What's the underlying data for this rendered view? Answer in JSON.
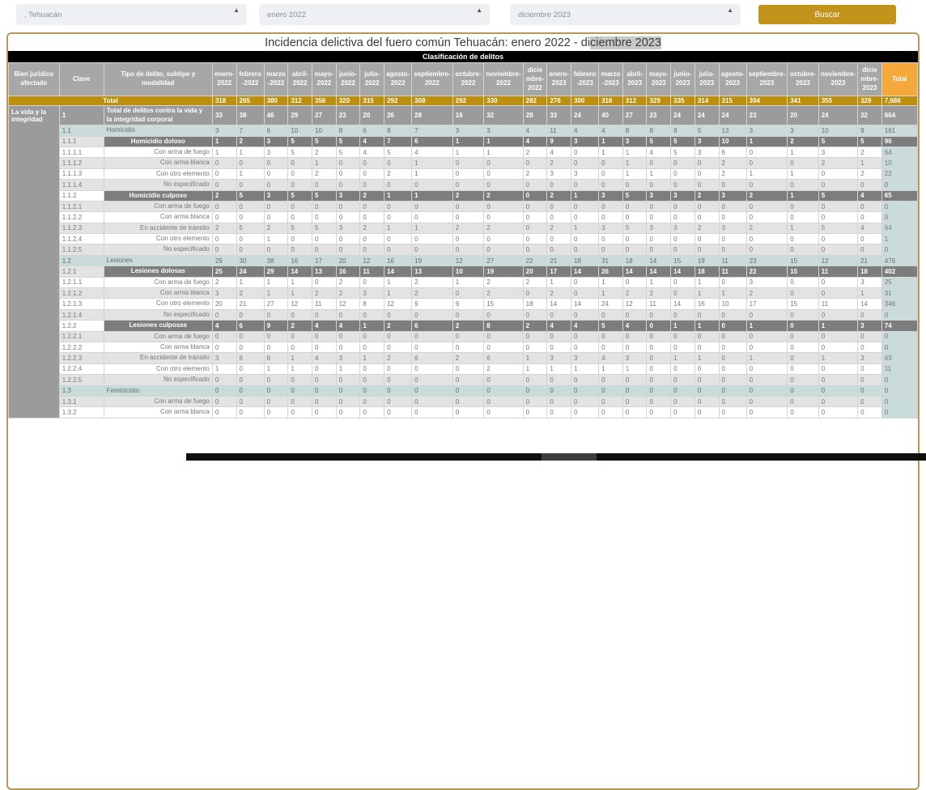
{
  "filters": {
    "municipality": ", Tehuacán",
    "period_start": "enero 2022",
    "period_end": "diciembre 2023",
    "search_label": "Buscar"
  },
  "title": {
    "before": "Incidencia delictiva del fuero común Tehuacán: enero 2022 - di",
    "highlight": "ciembre 2023"
  },
  "banner": "Clasificación de delitos",
  "colors": {
    "accent_gold": "#bd8f0e",
    "total_header_orange": "#f5a83c",
    "header_gray": "#a7a7a7",
    "group_gray": "#9b9b9b",
    "modality_dark_gray": "#7d7d7d",
    "subtype_blue": "#c9dbdb",
    "bien_sage": "#9cab9c",
    "button_gold": "#c3941c"
  },
  "table": {
    "headers": {
      "bien": "Bien jurídico afectado",
      "clave": "Clave",
      "tipo": "Tipo de delito, subtipo y modalidad",
      "total": "Total"
    },
    "months": [
      "enero-2022",
      "febrero-2022",
      "marzo-2022",
      "abril-2022",
      "mayo-2022",
      "junio-2022",
      "julio-2022",
      "agosto-2022",
      "septiembre-2022",
      "octubre-2022",
      "noviembre-2022",
      "diciembre-2022",
      "enero-2023",
      "febrero-2023",
      "marzo-2023",
      "abril-2023",
      "mayo-2023",
      "junio-2023",
      "julio-2023",
      "agosto-2023",
      "septiembre-2023",
      "octubre-2023",
      "noviembre-2023",
      "diciembre-2023"
    ],
    "total_row": {
      "label": "Total",
      "values": [
        318,
        265,
        380,
        312,
        356,
        320,
        315,
        292,
        308,
        292,
        330,
        282,
        276,
        300,
        316,
        312,
        329,
        335,
        314,
        315,
        394,
        341,
        355,
        329
      ],
      "total": "7,686"
    },
    "bien_label": "La vida y la integridad",
    "rows": [
      {
        "clave": "1",
        "name": "Total de delitos contra la vida y la integridad corporal",
        "style": "group",
        "values": [
          33,
          38,
          46,
          29,
          27,
          23,
          20,
          26,
          28,
          16,
          32,
          28,
          33,
          24,
          40,
          27,
          23,
          24,
          24,
          24,
          23,
          20,
          24,
          32
        ],
        "total": "664"
      },
      {
        "clave": "1.1",
        "name": "Homicidio",
        "style": "blue",
        "values": [
          3,
          7,
          6,
          10,
          10,
          8,
          6,
          8,
          7,
          3,
          3,
          4,
          11,
          4,
          4,
          8,
          8,
          8,
          5,
          13,
          3,
          3,
          10,
          9
        ],
        "total": "161"
      },
      {
        "clave": "1.1.1",
        "name": "Homicidio doloso",
        "style": "dark",
        "values": [
          1,
          2,
          3,
          5,
          5,
          5,
          4,
          7,
          6,
          1,
          1,
          4,
          9,
          3,
          1,
          3,
          5,
          5,
          3,
          10,
          1,
          2,
          5,
          5
        ],
        "total": "96"
      },
      {
        "clave": "1.1.1.1",
        "name": "Con arma de fuego",
        "style": "leaf",
        "values": [
          1,
          1,
          3,
          5,
          2,
          5,
          4,
          5,
          4,
          1,
          1,
          2,
          4,
          0,
          1,
          1,
          4,
          5,
          3,
          6,
          0,
          1,
          3,
          2
        ],
        "total": "64"
      },
      {
        "clave": "1.1.1.2",
        "name": "Con arma blanca",
        "style": "leaf",
        "values": [
          0,
          0,
          0,
          0,
          1,
          0,
          0,
          0,
          1,
          0,
          0,
          0,
          2,
          0,
          0,
          1,
          0,
          0,
          0,
          2,
          0,
          0,
          2,
          1
        ],
        "total": "10"
      },
      {
        "clave": "1.1.1.3",
        "name": "Con otro elemento",
        "style": "leaf",
        "values": [
          0,
          1,
          0,
          0,
          2,
          0,
          0,
          2,
          1,
          0,
          0,
          2,
          3,
          3,
          0,
          1,
          1,
          0,
          0,
          2,
          1,
          1,
          0,
          2
        ],
        "total": "22"
      },
      {
        "clave": "1.1.1.4",
        "name": "No especificado",
        "style": "leaf",
        "values": [
          0,
          0,
          0,
          0,
          0,
          0,
          0,
          0,
          0,
          0,
          0,
          0,
          0,
          0,
          0,
          0,
          0,
          0,
          0,
          0,
          0,
          0,
          0,
          0
        ],
        "total": "0"
      },
      {
        "clave": "1.1.2",
        "name": "Homicidio culposo",
        "style": "dark",
        "values": [
          2,
          5,
          3,
          5,
          5,
          3,
          2,
          1,
          1,
          2,
          2,
          0,
          2,
          1,
          3,
          5,
          3,
          3,
          2,
          3,
          2,
          1,
          5,
          4
        ],
        "total": "65"
      },
      {
        "clave": "1.1.2.1",
        "name": "Con arma de fuego",
        "style": "leaf",
        "values": [
          0,
          0,
          0,
          0,
          0,
          0,
          0,
          0,
          0,
          0,
          0,
          0,
          0,
          0,
          0,
          0,
          0,
          0,
          0,
          0,
          0,
          0,
          0,
          0
        ],
        "total": "0"
      },
      {
        "clave": "1.1.2.2",
        "name": "Con arma blanca",
        "style": "leaf",
        "values": [
          0,
          0,
          0,
          0,
          0,
          0,
          0,
          0,
          0,
          0,
          0,
          0,
          0,
          0,
          0,
          0,
          0,
          0,
          0,
          0,
          0,
          0,
          0,
          0
        ],
        "total": "0"
      },
      {
        "clave": "1.1.2.3",
        "name": "En accidente de tránsito",
        "style": "leaf",
        "values": [
          2,
          5,
          2,
          5,
          5,
          3,
          2,
          1,
          1,
          2,
          2,
          0,
          2,
          1,
          3,
          5,
          3,
          3,
          2,
          3,
          2,
          1,
          5,
          4
        ],
        "total": "64"
      },
      {
        "clave": "1.1.2.4",
        "name": "Con otro elemento",
        "style": "leaf",
        "values": [
          0,
          0,
          1,
          0,
          0,
          0,
          0,
          0,
          0,
          0,
          0,
          0,
          0,
          0,
          0,
          0,
          0,
          0,
          0,
          0,
          0,
          0,
          0,
          0
        ],
        "total": "1"
      },
      {
        "clave": "1.1.2.5",
        "name": "No especificado",
        "style": "leaf",
        "values": [
          0,
          0,
          0,
          0,
          0,
          0,
          0,
          0,
          0,
          0,
          0,
          0,
          0,
          0,
          0,
          0,
          0,
          0,
          0,
          0,
          0,
          0,
          0,
          0
        ],
        "total": "0"
      },
      {
        "clave": "1.2",
        "name": "Lesiones",
        "style": "blue",
        "values": [
          29,
          30,
          38,
          16,
          17,
          20,
          12,
          16,
          19,
          12,
          27,
          22,
          21,
          18,
          31,
          18,
          14,
          15,
          19,
          11,
          23,
          15,
          12,
          21
        ],
        "total": "476"
      },
      {
        "clave": "1.2.1",
        "name": "Lesiones dolosas",
        "style": "dark",
        "values": [
          25,
          24,
          29,
          14,
          13,
          16,
          11,
          14,
          13,
          10,
          19,
          20,
          17,
          14,
          26,
          14,
          14,
          14,
          18,
          11,
          22,
          15,
          11,
          18
        ],
        "total": "402"
      },
      {
        "clave": "1.2.1.1",
        "name": "Con arma de fuego",
        "style": "leaf",
        "values": [
          2,
          1,
          1,
          1,
          0,
          2,
          0,
          1,
          2,
          1,
          2,
          2,
          1,
          0,
          1,
          0,
          1,
          0,
          1,
          0,
          3,
          0,
          0,
          3
        ],
        "total": "25"
      },
      {
        "clave": "1.2.1.2",
        "name": "Con arma blanca",
        "style": "leaf",
        "values": [
          3,
          2,
          1,
          1,
          2,
          2,
          3,
          1,
          2,
          0,
          2,
          0,
          2,
          0,
          1,
          2,
          2,
          0,
          1,
          1,
          2,
          0,
          0,
          1
        ],
        "total": "31"
      },
      {
        "clave": "1.2.1.3",
        "name": "Con otro elemento",
        "style": "leaf",
        "values": [
          20,
          21,
          27,
          12,
          11,
          12,
          8,
          12,
          9,
          9,
          15,
          18,
          14,
          14,
          24,
          12,
          11,
          14,
          16,
          10,
          17,
          15,
          11,
          14
        ],
        "total": "346"
      },
      {
        "clave": "1.2.1.4",
        "name": "No especificado",
        "style": "leaf",
        "values": [
          0,
          0,
          0,
          0,
          0,
          0,
          0,
          0,
          0,
          0,
          0,
          0,
          0,
          0,
          0,
          0,
          0,
          0,
          0,
          0,
          0,
          0,
          0,
          0
        ],
        "total": "0"
      },
      {
        "clave": "1.2.2",
        "name": "Lesiones culposas",
        "style": "dark",
        "values": [
          4,
          6,
          9,
          2,
          4,
          4,
          1,
          2,
          6,
          2,
          8,
          2,
          4,
          4,
          5,
          4,
          0,
          1,
          1,
          0,
          1,
          0,
          1,
          3
        ],
        "total": "74"
      },
      {
        "clave": "1.2.2.1",
        "name": "Con arma de fuego",
        "style": "leaf",
        "values": [
          0,
          0,
          0,
          0,
          0,
          0,
          0,
          0,
          0,
          0,
          0,
          0,
          0,
          0,
          0,
          0,
          0,
          0,
          0,
          0,
          0,
          0,
          0,
          0
        ],
        "total": "0"
      },
      {
        "clave": "1.2.2.2",
        "name": "Con arma blanca",
        "style": "leaf",
        "values": [
          0,
          0,
          0,
          0,
          0,
          0,
          0,
          0,
          0,
          0,
          0,
          0,
          0,
          0,
          0,
          0,
          0,
          0,
          0,
          0,
          0,
          0,
          0,
          0
        ],
        "total": "0"
      },
      {
        "clave": "1.2.2.3",
        "name": "En accidente de tránsito",
        "style": "leaf",
        "values": [
          3,
          6,
          8,
          1,
          4,
          3,
          1,
          2,
          6,
          2,
          6,
          1,
          3,
          3,
          4,
          3,
          0,
          1,
          1,
          0,
          1,
          0,
          1,
          3
        ],
        "total": "63"
      },
      {
        "clave": "1.2.2.4",
        "name": "Con otro elemento",
        "style": "leaf",
        "values": [
          1,
          0,
          1,
          1,
          0,
          1,
          0,
          0,
          0,
          0,
          2,
          1,
          1,
          1,
          1,
          1,
          0,
          0,
          0,
          0,
          0,
          0,
          0,
          0
        ],
        "total": "11"
      },
      {
        "clave": "1.2.2.5",
        "name": "No especificado",
        "style": "leaf",
        "values": [
          0,
          0,
          0,
          0,
          0,
          0,
          0,
          0,
          0,
          0,
          0,
          0,
          0,
          0,
          0,
          0,
          0,
          0,
          0,
          0,
          0,
          0,
          0,
          0
        ],
        "total": "0"
      },
      {
        "clave": "1.3",
        "name": "Feminicidio",
        "style": "blue",
        "values": [
          0,
          0,
          0,
          0,
          0,
          0,
          0,
          0,
          0,
          0,
          0,
          0,
          0,
          0,
          0,
          0,
          0,
          0,
          0,
          0,
          0,
          0,
          0,
          0
        ],
        "total": "0"
      },
      {
        "clave": "1.3.1",
        "name": "Con arma de fuego",
        "style": "leaf",
        "values": [
          0,
          0,
          0,
          0,
          0,
          0,
          0,
          0,
          0,
          0,
          0,
          0,
          0,
          0,
          0,
          0,
          0,
          0,
          0,
          0,
          0,
          0,
          0,
          0
        ],
        "total": "0"
      },
      {
        "clave": "1.3.2",
        "name": "Con arma blanca",
        "style": "leaf",
        "values": [
          0,
          0,
          0,
          0,
          0,
          0,
          0,
          0,
          0,
          0,
          0,
          0,
          0,
          0,
          0,
          0,
          0,
          0,
          0,
          0,
          0,
          0,
          0,
          0
        ],
        "total": "0"
      }
    ]
  }
}
